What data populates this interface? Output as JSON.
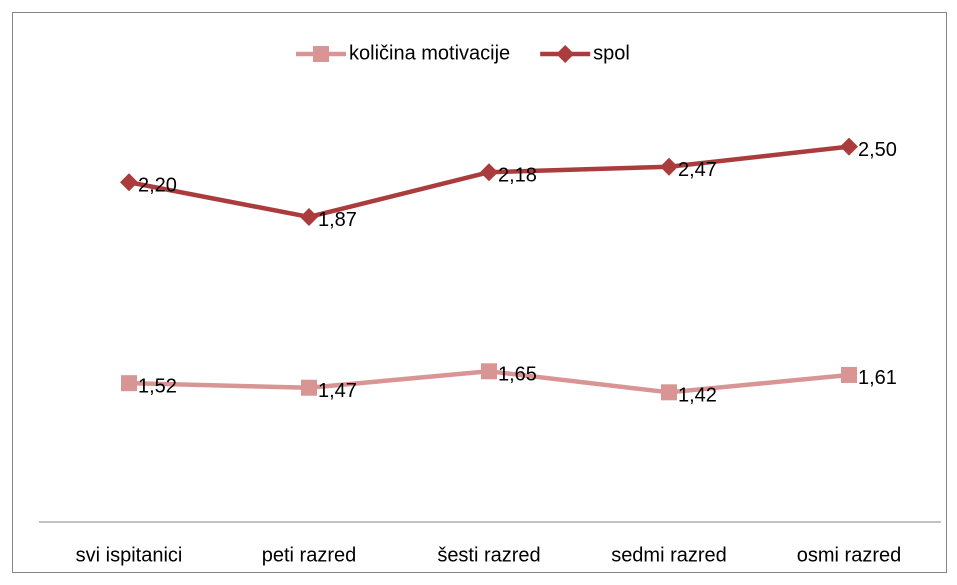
{
  "chart_data": {
    "type": "line",
    "stacked": true,
    "categories": [
      "svi ispitanici",
      "peti razred",
      "šesti razred",
      "sedmi razred",
      "osmi razred"
    ],
    "series": [
      {
        "name": "količina motivacije",
        "color": "#d99594",
        "marker": "square",
        "values": [
          1.52,
          1.47,
          1.65,
          1.42,
          1.61
        ],
        "value_labels": [
          "1,52",
          "1,47",
          "1,65",
          "1,42",
          "1,61"
        ]
      },
      {
        "name": "spol",
        "color": "#ab3c3d",
        "marker": "diamond",
        "values": [
          2.2,
          1.87,
          2.18,
          2.47,
          2.5
        ],
        "value_labels": [
          "2,20",
          "1,87",
          "2,18",
          "2,47",
          "2,50"
        ]
      }
    ],
    "ylim": [
      0,
      4.5
    ],
    "legend": "top"
  }
}
